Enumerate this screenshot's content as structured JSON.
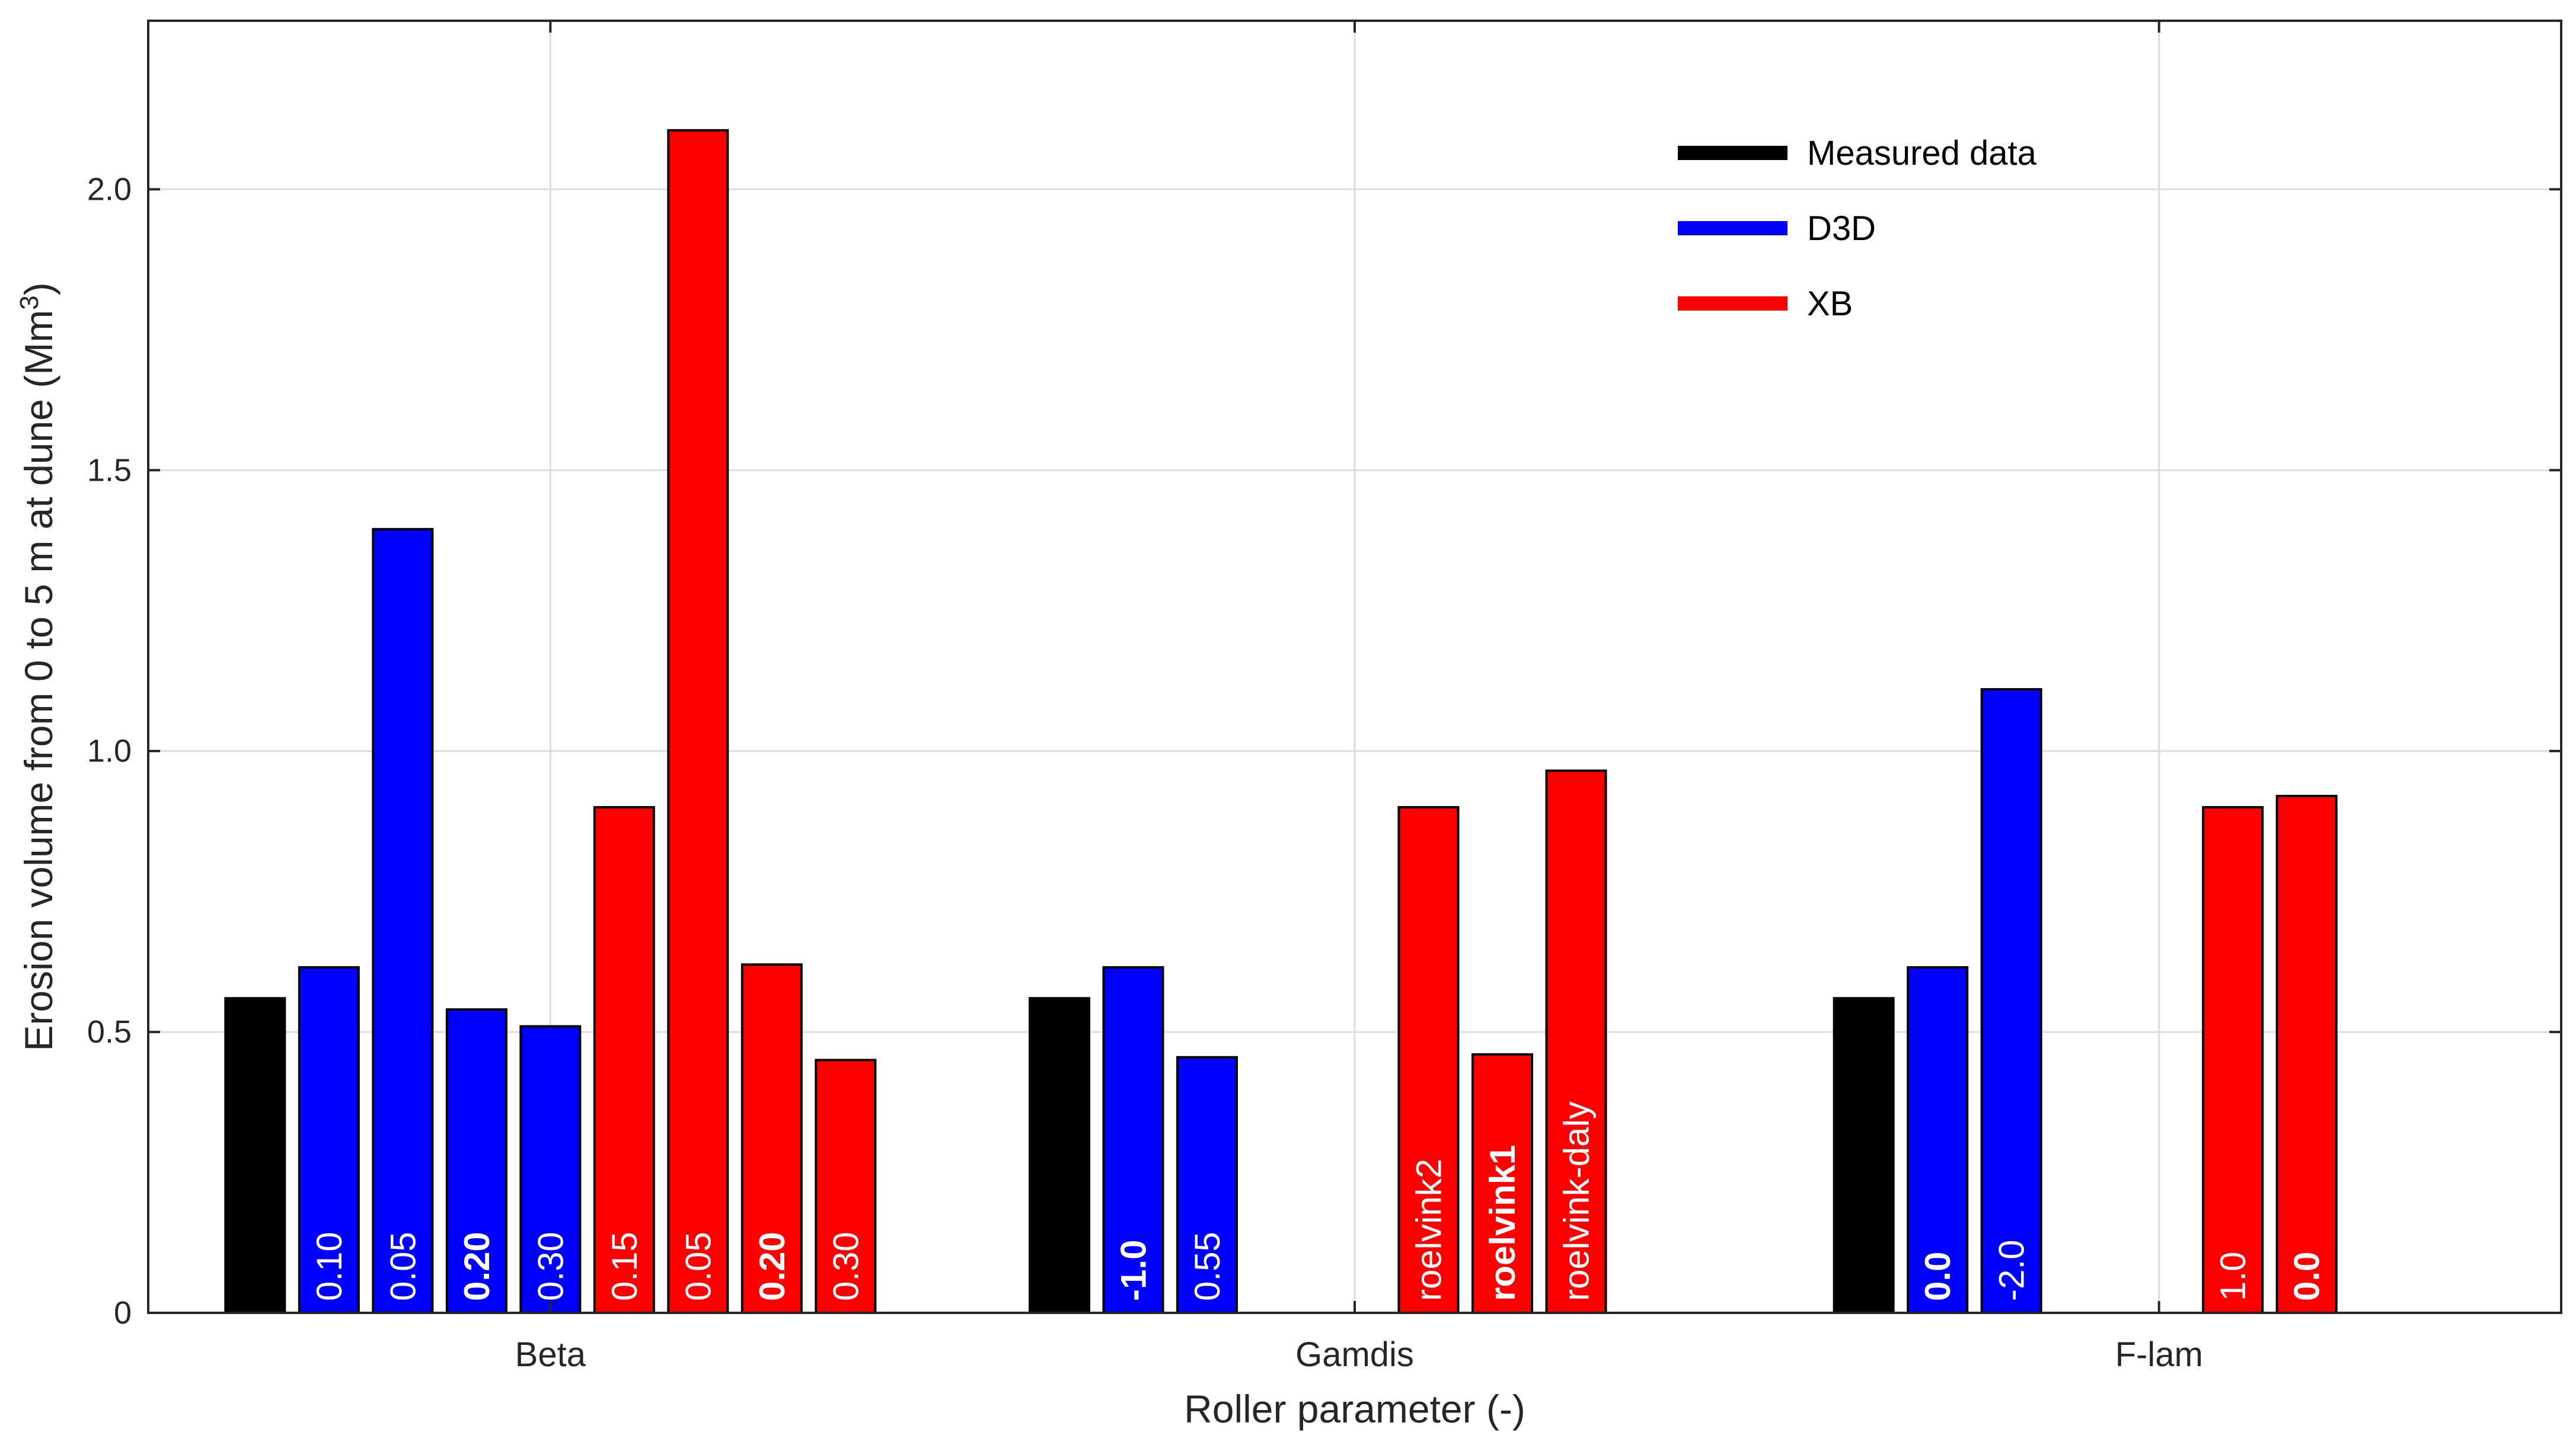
{
  "chart_data": {
    "type": "bar",
    "xlabel": "Roller parameter (-)",
    "ylabel": "Erosion volume from 0 to 5 m at dune (Mm",
    "ylabel_superscript": "3",
    "ylabel_close": ")",
    "ylim": [
      0,
      2.3
    ],
    "yticks": [
      0,
      0.5,
      1.0,
      1.5,
      2.0
    ],
    "ytick_labels": [
      "0",
      "0.5",
      "1.0",
      "1.5",
      "2.0"
    ],
    "grid": true,
    "legend_position": "top-right",
    "colors": {
      "Measured data": "#000000",
      "D3D": "#0000ff",
      "XB": "#ff0000"
    },
    "legend": [
      "Measured data",
      "D3D",
      "XB"
    ],
    "groups": [
      {
        "name": "Beta",
        "bars": [
          {
            "series": "Measured data",
            "value": 0.56,
            "label": "",
            "bold": false
          },
          {
            "series": "D3D",
            "value": 0.615,
            "label": "0.10",
            "bold": false
          },
          {
            "series": "D3D",
            "value": 1.395,
            "label": "0.05",
            "bold": false
          },
          {
            "series": "D3D",
            "value": 0.54,
            "label": "0.20",
            "bold": true
          },
          {
            "series": "D3D",
            "value": 0.51,
            "label": "0.30",
            "bold": false
          },
          {
            "series": "XB",
            "value": 0.9,
            "label": "0.15",
            "bold": false
          },
          {
            "series": "XB",
            "value": 2.105,
            "label": "0.05",
            "bold": false
          },
          {
            "series": "XB",
            "value": 0.62,
            "label": "0.20",
            "bold": true
          },
          {
            "series": "XB",
            "value": 0.45,
            "label": "0.30",
            "bold": false
          }
        ]
      },
      {
        "name": "Gamdis",
        "bars": [
          {
            "series": "Measured data",
            "value": 0.56,
            "label": "",
            "bold": false
          },
          {
            "series": "D3D",
            "value": 0.615,
            "label": "-1.0",
            "bold": true
          },
          {
            "series": "D3D",
            "value": 0.455,
            "label": "0.55",
            "bold": false
          },
          {
            "series": null,
            "value": null,
            "label": "",
            "bold": false
          },
          {
            "series": null,
            "value": null,
            "label": "",
            "bold": false
          },
          {
            "series": "XB",
            "value": 0.9,
            "label": "roelvink2",
            "bold": false
          },
          {
            "series": "XB",
            "value": 0.46,
            "label": "roelvink1",
            "bold": true
          },
          {
            "series": "XB",
            "value": 0.965,
            "label": "roelvink-daly",
            "bold": false
          },
          {
            "series": null,
            "value": null,
            "label": "",
            "bold": false
          }
        ]
      },
      {
        "name": "F-lam",
        "bars": [
          {
            "series": "Measured data",
            "value": 0.56,
            "label": "",
            "bold": false
          },
          {
            "series": "D3D",
            "value": 0.615,
            "label": "0.0",
            "bold": true
          },
          {
            "series": "D3D",
            "value": 1.11,
            "label": "-2.0",
            "bold": false
          },
          {
            "series": null,
            "value": null,
            "label": "",
            "bold": false
          },
          {
            "series": null,
            "value": null,
            "label": "",
            "bold": false
          },
          {
            "series": "XB",
            "value": 0.9,
            "label": "1.0",
            "bold": false
          },
          {
            "series": "XB",
            "value": 0.92,
            "label": "0.0",
            "bold": true
          },
          {
            "series": null,
            "value": null,
            "label": "",
            "bold": false
          },
          {
            "series": null,
            "value": null,
            "label": "",
            "bold": false
          }
        ]
      }
    ]
  }
}
